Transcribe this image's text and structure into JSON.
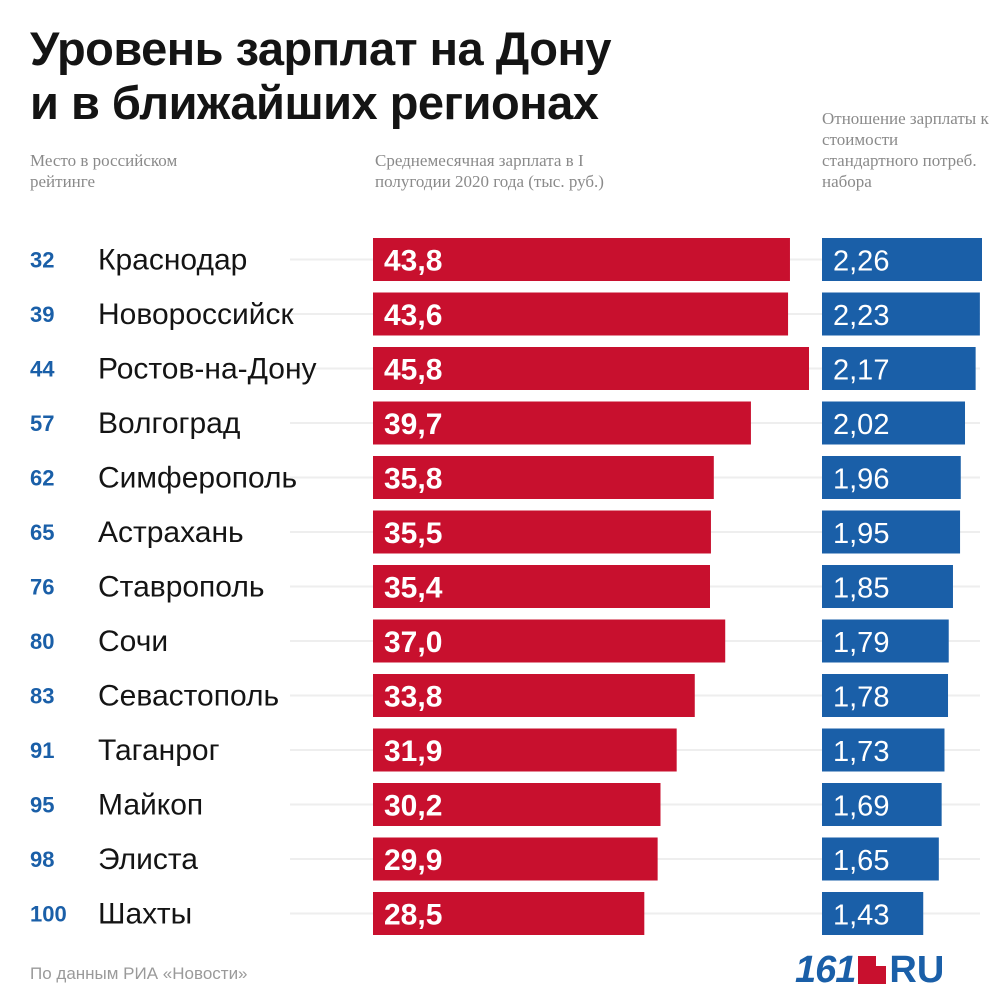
{
  "title_line1": "Уровень зарплат на Дону",
  "title_line2": "и в ближайших регионах",
  "headers": {
    "rank": "Место в российском рейтинге",
    "salary": "Среднемесячная зарплата в I полугодии 2020 года (тыс. руб.)",
    "ratio": "Отношение зарплаты к стоимости стандартного потреб. набора"
  },
  "footer": {
    "source": "По данным РИА «Новости»",
    "logo_num": "161",
    "logo_ru": "RU"
  },
  "colors": {
    "salary_bar": "#c8102e",
    "ratio_bar": "#1a5fa8",
    "rank_text": "#1a5fa8",
    "city_text": "#141414",
    "bar_text": "#ffffff"
  },
  "chart_data": {
    "type": "bar",
    "orientation": "horizontal",
    "categories": [
      "Краснодар",
      "Новороссийск",
      "Ростов-на-Дону",
      "Волгоград",
      "Симферополь",
      "Астрахань",
      "Ставрополь",
      "Сочи",
      "Севастополь",
      "Таганрог",
      "Майкоп",
      "Элиста",
      "Шахты"
    ],
    "ranks": [
      "32",
      "39",
      "44",
      "57",
      "62",
      "65",
      "76",
      "80",
      "83",
      "91",
      "95",
      "98",
      "100"
    ],
    "series": [
      {
        "name": "Среднемесячная зарплата в I полугодии 2020 года (тыс. руб.)",
        "values": [
          43.8,
          43.6,
          45.8,
          39.7,
          35.8,
          35.5,
          35.4,
          37.0,
          33.8,
          31.9,
          30.2,
          29.9,
          28.5
        ],
        "labels": [
          "43,8",
          "43,6",
          "45,8",
          "39,7",
          "35,8",
          "35,5",
          "35,4",
          "37,0",
          "33,8",
          "31,9",
          "30,2",
          "29,9",
          "28,5"
        ]
      },
      {
        "name": "Отношение зарплаты к стоимости стандартного потреб. набора",
        "values": [
          2.26,
          2.23,
          2.17,
          2.02,
          1.96,
          1.95,
          1.85,
          1.79,
          1.78,
          1.73,
          1.69,
          1.65,
          1.43
        ],
        "labels": [
          "2,26",
          "2,23",
          "2,17",
          "2,02",
          "1,96",
          "1,95",
          "1,85",
          "1,79",
          "1,78",
          "1,73",
          "1,69",
          "1,65",
          "1,43"
        ]
      }
    ],
    "title": "Уровень зарплат на Дону и в ближайших регионах",
    "xlabel": "",
    "ylabel": "",
    "grid": false
  }
}
